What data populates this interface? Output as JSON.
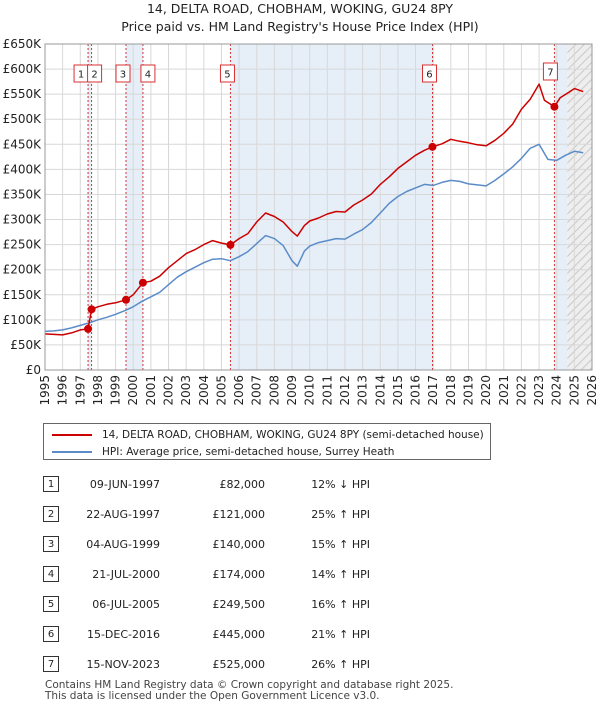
{
  "colors": {
    "property": "#cc0000",
    "hpi": "#5b8cc8",
    "shade": "#e6eef8",
    "vline": "#d83030",
    "grid": "#d8d8d8"
  },
  "chart_data": {
    "type": "line",
    "title": "14, DELTA ROAD, CHOBHAM, WOKING, GU24 8PY",
    "subtitle": "Price paid vs. HM Land Registry's House Price Index (HPI)",
    "xlim": [
      1995,
      2026
    ],
    "ylim": [
      0,
      650000
    ],
    "x_ticks": [
      "1995",
      "1996",
      "1997",
      "1998",
      "1999",
      "2000",
      "2001",
      "2002",
      "2003",
      "2004",
      "2005",
      "2006",
      "2007",
      "2008",
      "2009",
      "2010",
      "2011",
      "2012",
      "2013",
      "2014",
      "2015",
      "2016",
      "2017",
      "2018",
      "2019",
      "2020",
      "2021",
      "2022",
      "2023",
      "2024",
      "2025",
      "2026"
    ],
    "y_ticks": [
      {
        "value": 0,
        "label": "£0"
      },
      {
        "value": 50000,
        "label": "£50K"
      },
      {
        "value": 100000,
        "label": "£100K"
      },
      {
        "value": 150000,
        "label": "£150K"
      },
      {
        "value": 200000,
        "label": "£200K"
      },
      {
        "value": 250000,
        "label": "£250K"
      },
      {
        "value": 300000,
        "label": "£300K"
      },
      {
        "value": 350000,
        "label": "£350K"
      },
      {
        "value": 400000,
        "label": "£400K"
      },
      {
        "value": 450000,
        "label": "£450K"
      },
      {
        "value": 500000,
        "label": "£500K"
      },
      {
        "value": 550000,
        "label": "£550K"
      },
      {
        "value": 600000,
        "label": "£600K"
      },
      {
        "value": 650000,
        "label": "£650K"
      }
    ],
    "shaded_ranges": [
      [
        1997.44,
        1997.64
      ],
      [
        1999.59,
        2000.55
      ],
      [
        2005.51,
        2016.96
      ],
      [
        2023.87,
        2024.6
      ]
    ],
    "hatched_range": [
      2024.6,
      2026
    ],
    "series": [
      {
        "name": "14, DELTA ROAD, CHOBHAM, WOKING, GU24 8PY (semi-detached house)",
        "x": [
          1995,
          1995.5,
          1996,
          1996.5,
          1997,
          1997.44,
          1997.64,
          1998,
          1998.5,
          1999,
          1999.59,
          2000,
          2000.55,
          2001,
          2001.5,
          2002,
          2002.5,
          2003,
          2003.5,
          2004,
          2004.5,
          2005,
          2005.51,
          2006,
          2006.5,
          2007,
          2007.5,
          2008,
          2008.5,
          2009,
          2009.3,
          2009.7,
          2010,
          2010.5,
          2011,
          2011.5,
          2012,
          2012.5,
          2013,
          2013.5,
          2014,
          2014.5,
          2015,
          2015.5,
          2016,
          2016.5,
          2016.96,
          2017.5,
          2018,
          2018.5,
          2019,
          2019.5,
          2020,
          2020.5,
          2021,
          2021.5,
          2022,
          2022.5,
          2023,
          2023.3,
          2023.87,
          2024.2,
          2024.6,
          2025,
          2025.5
        ],
        "values": [
          72000,
          71000,
          70000,
          74000,
          80000,
          82000,
          121000,
          126000,
          131000,
          134000,
          140000,
          150000,
          174000,
          177000,
          187000,
          204000,
          218000,
          232000,
          240000,
          250000,
          258000,
          253000,
          249500,
          262000,
          272000,
          295000,
          313000,
          306000,
          295000,
          276000,
          267000,
          288000,
          297000,
          303000,
          311000,
          316000,
          315000,
          329000,
          339000,
          351000,
          370000,
          385000,
          402000,
          415000,
          428000,
          438000,
          445000,
          451000,
          460000,
          456000,
          453000,
          449000,
          447000,
          458000,
          472000,
          490000,
          520000,
          540000,
          570000,
          538000,
          525000,
          543000,
          552000,
          561000,
          555000
        ]
      },
      {
        "name": "HPI: Average price, semi-detached house, Surrey Heath",
        "x": [
          1995,
          1995.5,
          1996,
          1996.5,
          1997,
          1997.5,
          1998,
          1998.5,
          1999,
          1999.5,
          2000,
          2000.5,
          2001,
          2001.5,
          2002,
          2002.5,
          2003,
          2003.5,
          2004,
          2004.5,
          2005,
          2005.5,
          2006,
          2006.5,
          2007,
          2007.5,
          2008,
          2008.5,
          2009,
          2009.3,
          2009.7,
          2010,
          2010.5,
          2011,
          2011.5,
          2012,
          2012.5,
          2013,
          2013.5,
          2014,
          2014.5,
          2015,
          2015.5,
          2016,
          2016.5,
          2017,
          2017.5,
          2018,
          2018.5,
          2019,
          2019.5,
          2020,
          2020.5,
          2021,
          2021.5,
          2022,
          2022.5,
          2023,
          2023.5,
          2024,
          2024.5,
          2025,
          2025.5
        ],
        "values": [
          77000,
          78000,
          80000,
          84000,
          89000,
          94000,
          100000,
          105000,
          111000,
          118000,
          126000,
          137000,
          146000,
          155000,
          170000,
          185000,
          196000,
          205000,
          214000,
          221000,
          222000,
          218000,
          226000,
          236000,
          252000,
          268000,
          262000,
          248000,
          218000,
          207000,
          237000,
          247000,
          254000,
          258000,
          262000,
          261000,
          271000,
          280000,
          294000,
          313000,
          332000,
          346000,
          356000,
          363000,
          370000,
          368000,
          374000,
          378000,
          376000,
          371000,
          369000,
          367000,
          378000,
          391000,
          405000,
          422000,
          442000,
          450000,
          420000,
          418000,
          428000,
          436000,
          433000
        ]
      }
    ],
    "sales": [
      {
        "n": "1",
        "x": 1997.44,
        "value": 82000
      },
      {
        "n": "2",
        "x": 1997.64,
        "value": 121000
      },
      {
        "n": "3",
        "x": 1999.59,
        "value": 140000
      },
      {
        "n": "4",
        "x": 2000.55,
        "value": 174000
      },
      {
        "n": "5",
        "x": 2005.51,
        "value": 249500
      },
      {
        "n": "6",
        "x": 2016.96,
        "value": 445000
      },
      {
        "n": "7",
        "x": 2023.87,
        "value": 525000
      }
    ]
  },
  "legend": {
    "property_label": "14, DELTA ROAD, CHOBHAM, WOKING, GU24 8PY (semi-detached house)",
    "hpi_label": "HPI: Average price, semi-detached house, Surrey Heath"
  },
  "transactions": [
    {
      "n": "1",
      "date": "09-JUN-1997",
      "price": "£82,000",
      "hpi": "12% ↓ HPI"
    },
    {
      "n": "2",
      "date": "22-AUG-1997",
      "price": "£121,000",
      "hpi": "25% ↑ HPI"
    },
    {
      "n": "3",
      "date": "04-AUG-1999",
      "price": "£140,000",
      "hpi": "15% ↑ HPI"
    },
    {
      "n": "4",
      "date": "21-JUL-2000",
      "price": "£174,000",
      "hpi": "14% ↑ HPI"
    },
    {
      "n": "5",
      "date": "06-JUL-2005",
      "price": "£249,500",
      "hpi": "16% ↑ HPI"
    },
    {
      "n": "6",
      "date": "15-DEC-2016",
      "price": "£445,000",
      "hpi": "21% ↑ HPI"
    },
    {
      "n": "7",
      "date": "15-NOV-2023",
      "price": "£525,000",
      "hpi": "26% ↑ HPI"
    }
  ],
  "footer": {
    "line1": "Contains HM Land Registry data © Crown copyright and database right 2025.",
    "line2": "This data is licensed under the Open Government Licence v3.0."
  }
}
